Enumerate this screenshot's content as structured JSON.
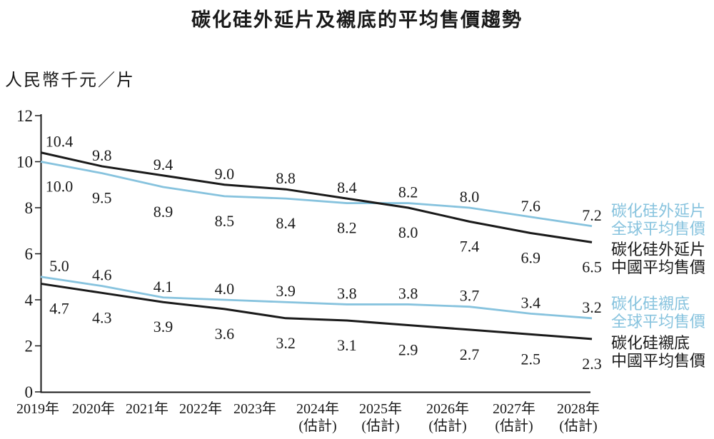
{
  "title": "碳化硅外延片及襯底的平均售價趨勢",
  "unit_label": "人民幣千元／片",
  "colors": {
    "global_line": "#87c3de",
    "china_line": "#1a1a1a",
    "label_text": "#1a1a1a"
  },
  "chart_data": {
    "type": "line",
    "title": "碳化硅外延片及襯底的平均售價趨勢",
    "ylabel": "人民幣千元／片",
    "ylim": [
      0,
      12
    ],
    "y_ticks": [
      "12",
      "10",
      "8",
      "6",
      "4",
      "2",
      "0"
    ],
    "grid": false,
    "legend_position": "right",
    "categories": [
      "2019年",
      "2020年",
      "2021年",
      "2022年",
      "2023年",
      "2024年",
      "2025年",
      "2026年",
      "2027年",
      "2028年"
    ],
    "categories_sub": [
      "",
      "",
      "",
      "",
      "",
      "(估計)",
      "(估計)",
      "(估計)",
      "(估計)",
      "(估計)"
    ],
    "series": [
      {
        "name": "碳化硅外延片全球平均售價",
        "legend_lines": [
          "碳化硅外延片",
          "全球平均售價"
        ],
        "color": "#87c3de",
        "values": [
          "10.0",
          "9.5",
          "8.9",
          "8.5",
          "8.4",
          "8.2",
          "8.2",
          "8.0",
          "7.6",
          "7.2"
        ]
      },
      {
        "name": "碳化硅外延片中國平均售價",
        "legend_lines": [
          "碳化硅外延片",
          "中國平均售價"
        ],
        "color": "#1a1a1a",
        "values": [
          "10.4",
          "9.8",
          "9.4",
          "9.0",
          "8.8",
          "8.4",
          "8.0",
          "7.4",
          "6.9",
          "6.5"
        ]
      },
      {
        "name": "碳化硅襯底全球平均售價",
        "legend_lines": [
          "碳化硅襯底",
          "全球平均售價"
        ],
        "color": "#87c3de",
        "values": [
          "5.0",
          "4.6",
          "4.1",
          "4.0",
          "3.9",
          "3.8",
          "3.8",
          "3.7",
          "3.4",
          "3.2"
        ]
      },
      {
        "name": "碳化硅襯底中國平均售價",
        "legend_lines": [
          "碳化硅襯底",
          "中國平均售價"
        ],
        "color": "#1a1a1a",
        "values": [
          "4.7",
          "4.3",
          "3.9",
          "3.6",
          "3.2",
          "3.1",
          "2.9",
          "2.7",
          "2.5",
          "2.3"
        ]
      }
    ],
    "pairs": [
      [
        0,
        1
      ],
      [
        2,
        3
      ]
    ]
  }
}
